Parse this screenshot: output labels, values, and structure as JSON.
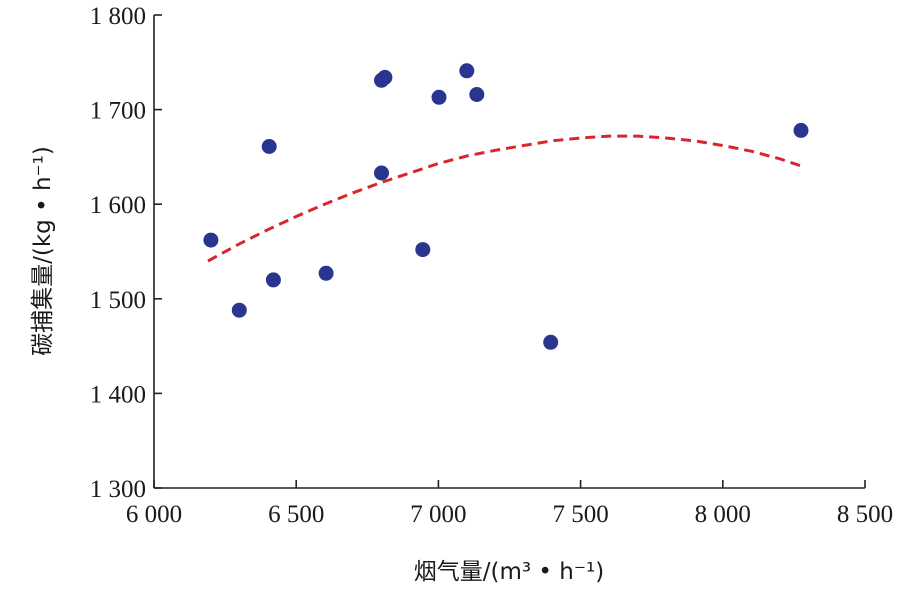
{
  "chart_data": {
    "type": "scatter",
    "xlabel": "烟气量/(m³ • h⁻¹)",
    "ylabel": "碳捕集量/(kg • h⁻¹)",
    "xlim": [
      6000,
      8500
    ],
    "ylim": [
      1300,
      1800
    ],
    "x_ticks": [
      6000,
      6500,
      7000,
      7500,
      8000,
      8500
    ],
    "x_tick_labels": [
      "6 000",
      "6 500",
      "7 000",
      "7 500",
      "8 000",
      "8 500"
    ],
    "y_ticks": [
      1300,
      1400,
      1500,
      1600,
      1700,
      1800
    ],
    "y_tick_labels": [
      "1 300",
      "1 400",
      "1 500",
      "1 600",
      "1 700",
      "1 800"
    ],
    "grid": false,
    "colors": {
      "points": "#2a3590",
      "fit": "#d8262e"
    },
    "points": [
      {
        "x": 6200,
        "y": 1562
      },
      {
        "x": 6300,
        "y": 1488
      },
      {
        "x": 6405,
        "y": 1661
      },
      {
        "x": 6420,
        "y": 1520
      },
      {
        "x": 6605,
        "y": 1527
      },
      {
        "x": 6800,
        "y": 1731
      },
      {
        "x": 6812,
        "y": 1734
      },
      {
        "x": 6800,
        "y": 1633
      },
      {
        "x": 6945,
        "y": 1552
      },
      {
        "x": 7002,
        "y": 1713
      },
      {
        "x": 7100,
        "y": 1741
      },
      {
        "x": 7135,
        "y": 1716
      },
      {
        "x": 7395,
        "y": 1454
      },
      {
        "x": 8275,
        "y": 1678
      }
    ],
    "fit_curve": {
      "style": "dashed",
      "x": [
        6190,
        6300,
        6400,
        6500,
        6600,
        6700,
        6800,
        6900,
        7000,
        7100,
        7200,
        7300,
        7400,
        7500,
        7600,
        7700,
        7800,
        7900,
        8000,
        8100,
        8200,
        8290
      ],
      "y": [
        1540,
        1558,
        1573,
        1587,
        1600,
        1612,
        1623,
        1633,
        1643,
        1651,
        1657,
        1662,
        1667,
        1670,
        1672,
        1672,
        1670,
        1667,
        1662,
        1656,
        1648,
        1639
      ]
    }
  }
}
